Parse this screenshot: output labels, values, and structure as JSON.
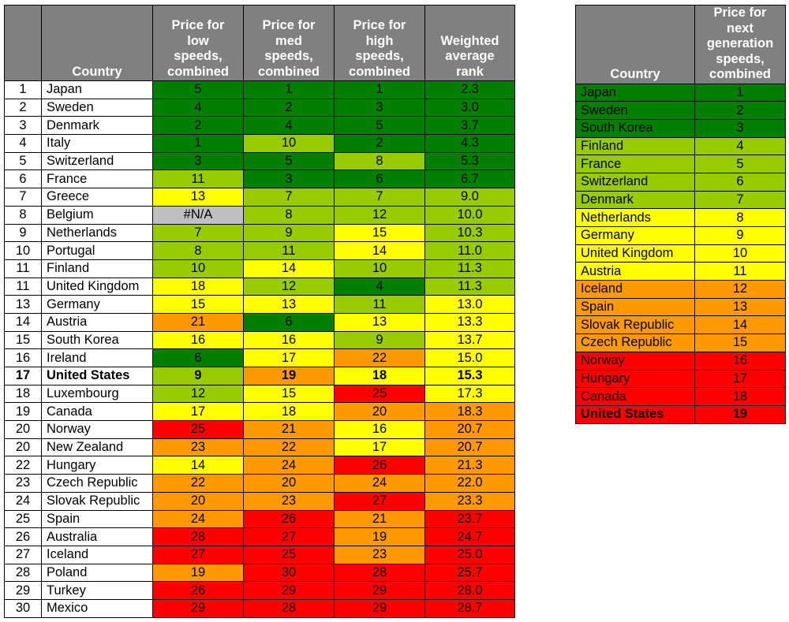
{
  "colors": {
    "c1": "#007f00",
    "c2": "#99cc00",
    "c3": "#ffff00",
    "c4": "#ff9900",
    "c5": "#ff0000",
    "na": "#c0c0c0",
    "header": "#808080"
  },
  "chart_data": [
    {
      "type": "table",
      "columns": [
        "",
        "Country",
        "Price for low speeds, combined",
        "Price for med speeds, combined",
        "Price for high speeds, combined",
        "Weighted average rank"
      ],
      "header": {
        "country": "Country",
        "low": [
          "Price for",
          "low",
          "speeds,",
          "combined"
        ],
        "med": [
          "Price for",
          "med",
          "speeds,",
          "combined"
        ],
        "high": [
          "Price for",
          "high",
          "speeds,",
          "combined"
        ],
        "avg": [
          "Weighted",
          "average",
          "rank"
        ]
      },
      "rows": [
        {
          "rank": "1",
          "country": "Japan",
          "low": "5",
          "med": "1",
          "high": "1",
          "avg": "2.3",
          "colors": [
            "c1",
            "c1",
            "c1",
            "c1"
          ]
        },
        {
          "rank": "2",
          "country": "Sweden",
          "low": "4",
          "med": "2",
          "high": "3",
          "avg": "3.0",
          "colors": [
            "c1",
            "c1",
            "c1",
            "c1"
          ]
        },
        {
          "rank": "3",
          "country": "Denmark",
          "low": "2",
          "med": "4",
          "high": "5",
          "avg": "3.7",
          "colors": [
            "c1",
            "c1",
            "c1",
            "c1"
          ]
        },
        {
          "rank": "4",
          "country": "Italy",
          "low": "1",
          "med": "10",
          "high": "2",
          "avg": "4.3",
          "colors": [
            "c1",
            "c2",
            "c1",
            "c1"
          ]
        },
        {
          "rank": "5",
          "country": "Switzerland",
          "low": "3",
          "med": "5",
          "high": "8",
          "avg": "5.3",
          "colors": [
            "c1",
            "c1",
            "c2",
            "c1"
          ]
        },
        {
          "rank": "6",
          "country": "France",
          "low": "11",
          "med": "3",
          "high": "6",
          "avg": "6.7",
          "colors": [
            "c2",
            "c1",
            "c1",
            "c1"
          ]
        },
        {
          "rank": "7",
          "country": "Greece",
          "low": "13",
          "med": "7",
          "high": "7",
          "avg": "9.0",
          "colors": [
            "c3",
            "c2",
            "c2",
            "c2"
          ]
        },
        {
          "rank": "8",
          "country": "Belgium",
          "low": "#N/A",
          "med": "8",
          "high": "12",
          "avg": "10.0",
          "colors": [
            "na",
            "c2",
            "c2",
            "c2"
          ]
        },
        {
          "rank": "9",
          "country": "Netherlands",
          "low": "7",
          "med": "9",
          "high": "15",
          "avg": "10.3",
          "colors": [
            "c2",
            "c2",
            "c3",
            "c2"
          ]
        },
        {
          "rank": "10",
          "country": "Portugal",
          "low": "8",
          "med": "11",
          "high": "14",
          "avg": "11.0",
          "colors": [
            "c2",
            "c2",
            "c3",
            "c2"
          ]
        },
        {
          "rank": "11",
          "country": "Finland",
          "low": "10",
          "med": "14",
          "high": "10",
          "avg": "11.3",
          "colors": [
            "c2",
            "c3",
            "c2",
            "c2"
          ]
        },
        {
          "rank": "11",
          "country": "United Kingdom",
          "low": "18",
          "med": "12",
          "high": "4",
          "avg": "11.3",
          "colors": [
            "c3",
            "c2",
            "c1",
            "c2"
          ]
        },
        {
          "rank": "13",
          "country": "Germany",
          "low": "15",
          "med": "13",
          "high": "11",
          "avg": "13.0",
          "colors": [
            "c3",
            "c3",
            "c2",
            "c3"
          ]
        },
        {
          "rank": "14",
          "country": "Austria",
          "low": "21",
          "med": "6",
          "high": "13",
          "avg": "13.3",
          "colors": [
            "c4",
            "c1",
            "c3",
            "c3"
          ]
        },
        {
          "rank": "15",
          "country": "South Korea",
          "low": "16",
          "med": "16",
          "high": "9",
          "avg": "13.7",
          "colors": [
            "c3",
            "c3",
            "c2",
            "c3"
          ]
        },
        {
          "rank": "16",
          "country": "Ireland",
          "low": "6",
          "med": "17",
          "high": "22",
          "avg": "15.0",
          "colors": [
            "c1",
            "c3",
            "c4",
            "c3"
          ]
        },
        {
          "rank": "17",
          "country": "United States",
          "low": "9",
          "med": "19",
          "high": "18",
          "avg": "15.3",
          "colors": [
            "c2",
            "c4",
            "c3",
            "c3"
          ],
          "bold": true
        },
        {
          "rank": "18",
          "country": "Luxembourg",
          "low": "12",
          "med": "15",
          "high": "25",
          "avg": "17.3",
          "colors": [
            "c2",
            "c3",
            "c5",
            "c3"
          ]
        },
        {
          "rank": "19",
          "country": "Canada",
          "low": "17",
          "med": "18",
          "high": "20",
          "avg": "18.3",
          "colors": [
            "c3",
            "c3",
            "c4",
            "c4"
          ]
        },
        {
          "rank": "20",
          "country": "Norway",
          "low": "25",
          "med": "21",
          "high": "16",
          "avg": "20.7",
          "colors": [
            "c5",
            "c4",
            "c3",
            "c4"
          ]
        },
        {
          "rank": "20",
          "country": "New Zealand",
          "low": "23",
          "med": "22",
          "high": "17",
          "avg": "20.7",
          "colors": [
            "c4",
            "c4",
            "c3",
            "c4"
          ]
        },
        {
          "rank": "22",
          "country": "Hungary",
          "low": "14",
          "med": "24",
          "high": "26",
          "avg": "21.3",
          "colors": [
            "c3",
            "c4",
            "c5",
            "c4"
          ]
        },
        {
          "rank": "23",
          "country": "Czech Republic",
          "low": "22",
          "med": "20",
          "high": "24",
          "avg": "22.0",
          "colors": [
            "c4",
            "c4",
            "c4",
            "c4"
          ]
        },
        {
          "rank": "24",
          "country": "Slovak Republic",
          "low": "20",
          "med": "23",
          "high": "27",
          "avg": "23.3",
          "colors": [
            "c4",
            "c4",
            "c5",
            "c4"
          ]
        },
        {
          "rank": "25",
          "country": "Spain",
          "low": "24",
          "med": "26",
          "high": "21",
          "avg": "23.7",
          "colors": [
            "c4",
            "c5",
            "c4",
            "c5"
          ]
        },
        {
          "rank": "26",
          "country": "Australia",
          "low": "28",
          "med": "27",
          "high": "19",
          "avg": "24.7",
          "colors": [
            "c5",
            "c5",
            "c4",
            "c5"
          ]
        },
        {
          "rank": "27",
          "country": "Iceland",
          "low": "27",
          "med": "25",
          "high": "23",
          "avg": "25.0",
          "colors": [
            "c5",
            "c5",
            "c4",
            "c5"
          ]
        },
        {
          "rank": "28",
          "country": "Poland",
          "low": "19",
          "med": "30",
          "high": "28",
          "avg": "25.7",
          "colors": [
            "c4",
            "c5",
            "c5",
            "c5"
          ]
        },
        {
          "rank": "29",
          "country": "Turkey",
          "low": "26",
          "med": "29",
          "high": "29",
          "avg": "28.0",
          "colors": [
            "c5",
            "c5",
            "c5",
            "c5"
          ]
        },
        {
          "rank": "30",
          "country": "Mexico",
          "low": "29",
          "med": "28",
          "high": "29",
          "avg": "28.7",
          "colors": [
            "c5",
            "c5",
            "c5",
            "c5"
          ]
        }
      ]
    },
    {
      "type": "table",
      "columns": [
        "Country",
        "Price for next generation speeds, combined"
      ],
      "header": {
        "country": "Country",
        "next": [
          "Price for",
          "next",
          "generation",
          "speeds,",
          "combined"
        ]
      },
      "rows": [
        {
          "country": "Japan",
          "value": "1",
          "color": "c1"
        },
        {
          "country": "Sweden",
          "value": "2",
          "color": "c1"
        },
        {
          "country": "South Korea",
          "value": "3",
          "color": "c1"
        },
        {
          "country": "Finland",
          "value": "4",
          "color": "c2"
        },
        {
          "country": "France",
          "value": "5",
          "color": "c2"
        },
        {
          "country": "Switzerland",
          "value": "6",
          "color": "c2"
        },
        {
          "country": "Denmark",
          "value": "7",
          "color": "c2"
        },
        {
          "country": "Netherlands",
          "value": "8",
          "color": "c3"
        },
        {
          "country": "Germany",
          "value": "9",
          "color": "c3"
        },
        {
          "country": "United Kingdom",
          "value": "10",
          "color": "c3"
        },
        {
          "country": "Austria",
          "value": "11",
          "color": "c3"
        },
        {
          "country": "Iceland",
          "value": "12",
          "color": "c4"
        },
        {
          "country": "Spain",
          "value": "13",
          "color": "c4"
        },
        {
          "country": "Slovak Republic",
          "value": "14",
          "color": "c4"
        },
        {
          "country": "Czech Republic",
          "value": "15",
          "color": "c4"
        },
        {
          "country": "Norway",
          "value": "16",
          "color": "c5"
        },
        {
          "country": "Hungary",
          "value": "17",
          "color": "c5"
        },
        {
          "country": "Canada",
          "value": "18",
          "color": "c5"
        },
        {
          "country": "United States",
          "value": "19",
          "color": "c5",
          "bold": true
        }
      ]
    }
  ]
}
